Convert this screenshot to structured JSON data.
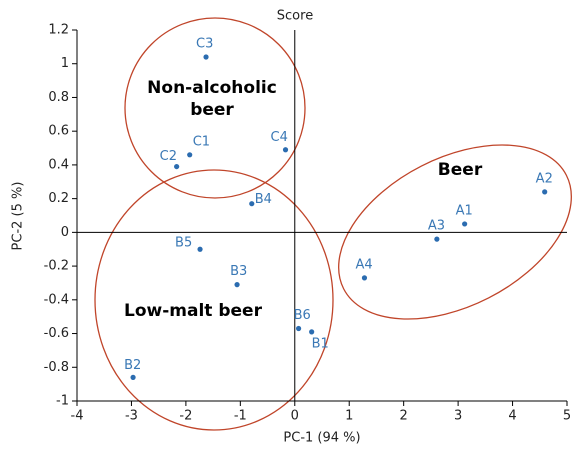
{
  "chart_data": {
    "type": "scatter",
    "title": "Score",
    "x_label": "PC-1 (94 %)",
    "y_label": "PC-2 (5 %)",
    "series": [
      {
        "name": null,
        "color": "#2b6cb0",
        "labels": [
          "C3",
          "C1",
          "C2",
          "C4",
          "B4",
          "B5",
          "B3",
          "B6",
          "B1",
          "B2",
          "A2",
          "A1",
          "A3",
          "A4"
        ],
        "x": [
          -1.63,
          -1.93,
          -2.17,
          -0.17,
          -0.79,
          -1.74,
          -1.06,
          0.07,
          0.31,
          -2.97,
          4.59,
          3.12,
          2.61,
          1.28
        ],
        "values": [
          1.04,
          0.46,
          0.39,
          0.49,
          0.17,
          -0.1,
          -0.31,
          -0.57,
          -0.59,
          -0.86,
          0.24,
          0.05,
          -0.04,
          -0.27
        ]
      }
    ],
    "annotations": [
      "Non-alcoholic",
      "beer",
      "Beer",
      "Low-malt beer"
    ],
    "xlim": [
      -4,
      5
    ],
    "ylim": [
      -1,
      1.2
    ],
    "xticks": [
      -4,
      -3,
      -2,
      -1,
      0,
      1,
      2,
      3,
      4,
      5
    ],
    "yticks": [
      -1,
      -0.8,
      -0.6,
      -0.4,
      -0.2,
      0,
      0.2,
      0.4,
      0.6,
      0.8,
      1,
      1.2
    ],
    "group_color": "#c0452a",
    "label_color": "#3a78b5"
  }
}
